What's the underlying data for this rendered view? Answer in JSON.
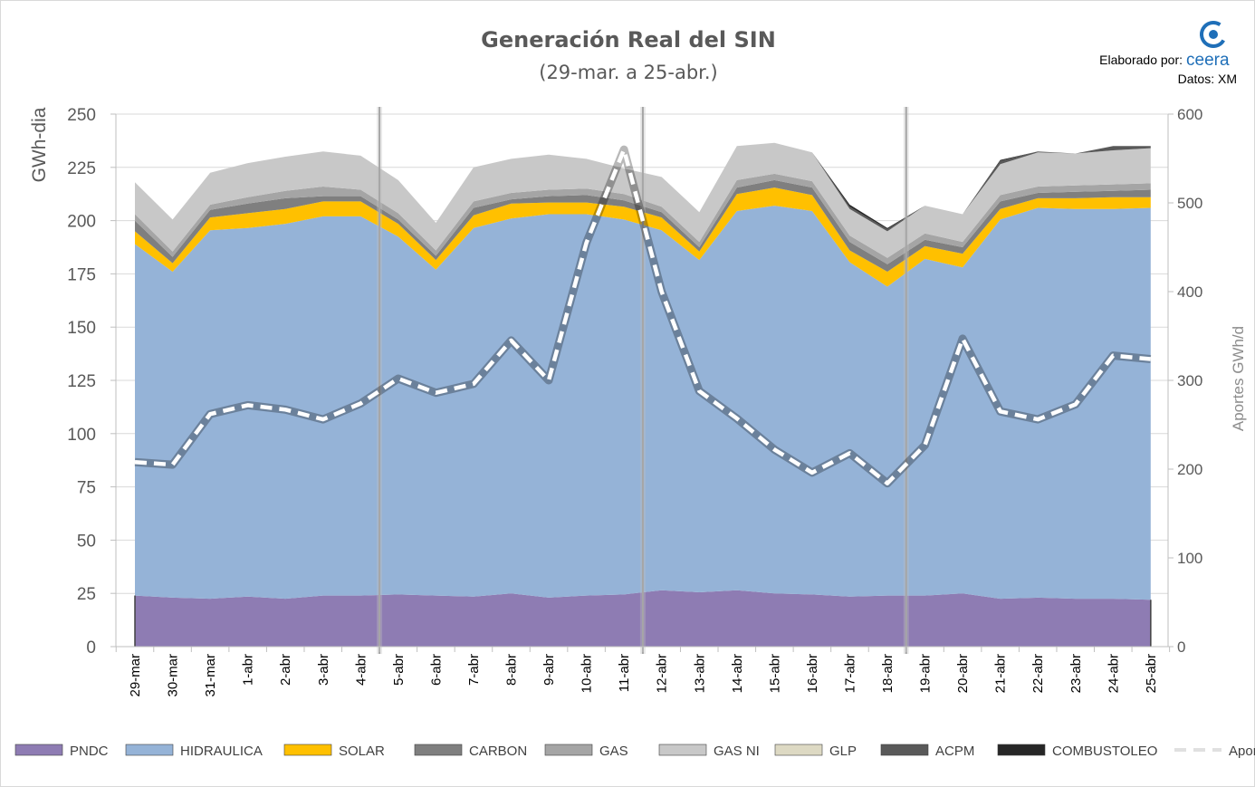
{
  "chart_data": {
    "type": "area",
    "title": "Generación Real del SIN",
    "subtitle": "(29-mar. a 25-abr.)",
    "credit": {
      "prefix": "Elaborado por:",
      "brand": "ceera",
      "source": "Datos: XM"
    },
    "ylabel": "GWh-dia",
    "y2label": "Aportes GWh/d",
    "ylim": [
      0,
      250
    ],
    "y2lim": [
      0,
      600
    ],
    "yticks": [
      0,
      25,
      50,
      75,
      100,
      125,
      150,
      175,
      200,
      225,
      250
    ],
    "y2ticks": [
      0,
      100,
      200,
      300,
      400,
      500,
      600
    ],
    "grid": true,
    "legend_position": "bottom",
    "categories": [
      "29-mar",
      "30-mar",
      "31-mar",
      "1-abr",
      "2-abr",
      "3-abr",
      "4-abr",
      "5-abr",
      "6-abr",
      "7-abr",
      "8-abr",
      "9-abr",
      "10-abr",
      "11-abr",
      "12-abr",
      "13-abr",
      "14-abr",
      "15-abr",
      "16-abr",
      "17-abr",
      "18-abr",
      "19-abr",
      "20-abr",
      "21-abr",
      "22-abr",
      "23-abr",
      "24-abr",
      "25-abr"
    ],
    "week_separators_after": [
      "4-abr",
      "11-abr",
      "18-abr"
    ],
    "stack_series": [
      {
        "name": "PNDC",
        "color": "#8e7cb3",
        "values": [
          24,
          23,
          22.5,
          23.5,
          22.5,
          24,
          24,
          24.5,
          24,
          23.5,
          25,
          23,
          24,
          24.5,
          26.5,
          25.5,
          26.5,
          25,
          24.5,
          23.5,
          24,
          24,
          25,
          22.5,
          23,
          22.5,
          22.5,
          22
        ]
      },
      {
        "name": "HIDRAULICA",
        "color": "#95b3d7",
        "values": [
          165,
          153,
          173,
          173,
          176,
          178,
          178,
          168,
          153,
          173,
          176,
          180,
          179,
          176,
          169,
          156,
          178,
          182,
          180,
          157,
          145,
          158,
          153,
          178,
          183,
          183,
          183,
          184
        ]
      },
      {
        "name": "SOLAR",
        "color": "#ffc000",
        "values": [
          6,
          4,
          6,
          7,
          7,
          7,
          7,
          6,
          4.5,
          6,
          7,
          5.5,
          5.5,
          6,
          6,
          4,
          8,
          8.5,
          7.5,
          5.5,
          7,
          6,
          6.5,
          5,
          4.5,
          5,
          5.5,
          5
        ]
      },
      {
        "name": "CARBON",
        "color": "#7f7f7f",
        "values": [
          5,
          3,
          3.5,
          4.5,
          5,
          2.5,
          2.5,
          2,
          2,
          3.5,
          2,
          3,
          3.5,
          3,
          2.5,
          2,
          3,
          3.5,
          3.5,
          4,
          3.5,
          3,
          3,
          3.5,
          2.5,
          3,
          3,
          3.5
        ]
      },
      {
        "name": "GAS",
        "color": "#a5a5a5",
        "values": [
          3,
          2.5,
          2.5,
          3,
          3.5,
          4.5,
          3,
          3,
          2.5,
          3,
          3,
          3,
          3,
          3,
          2.5,
          2.5,
          3.5,
          3,
          3,
          3,
          3,
          3,
          2.5,
          3,
          3,
          3,
          3,
          3
        ]
      },
      {
        "name": "GAS NI",
        "color": "#c8c8c8",
        "values": [
          15,
          15,
          15,
          16,
          16,
          16.5,
          16,
          15.5,
          13,
          16,
          16,
          16.5,
          14,
          12,
          14,
          14,
          16,
          14.5,
          13.5,
          12.5,
          12.5,
          13,
          13,
          14.5,
          16,
          15,
          16,
          16.5
        ]
      },
      {
        "name": "GLP",
        "color": "#ddd9c3",
        "values": [
          0,
          0,
          0,
          0,
          0,
          0,
          0,
          0,
          0,
          0,
          0,
          0,
          0,
          0,
          0,
          0,
          0,
          0,
          0,
          0,
          0,
          0,
          0,
          0,
          0,
          0,
          0,
          0
        ]
      },
      {
        "name": "ACPM",
        "color": "#595959",
        "values": [
          0,
          0,
          0,
          0,
          0,
          0,
          0,
          0,
          0,
          0,
          0,
          0,
          0,
          0,
          0,
          0,
          0,
          0,
          0,
          1,
          1,
          0,
          0,
          1.5,
          0.5,
          0,
          2,
          1
        ]
      },
      {
        "name": "COMBUSTOLEO",
        "color": "#262626",
        "values": [
          0,
          0,
          0,
          0,
          0,
          0,
          0,
          0,
          0,
          0,
          0,
          0,
          0,
          0,
          0,
          0,
          0,
          0,
          0,
          1,
          0.5,
          0,
          0,
          0.5,
          0,
          0,
          0,
          0
        ]
      }
    ],
    "line_series": {
      "name": "Aportes Caudal [GWh]",
      "axis": "right",
      "color": "#ffffff",
      "values": [
        208,
        205,
        262,
        272,
        267,
        256,
        274,
        302,
        286,
        296,
        345,
        300,
        455,
        560,
        400,
        288,
        257,
        222,
        196,
        218,
        184,
        227,
        347,
        265,
        256,
        273,
        328,
        324
      ]
    }
  }
}
